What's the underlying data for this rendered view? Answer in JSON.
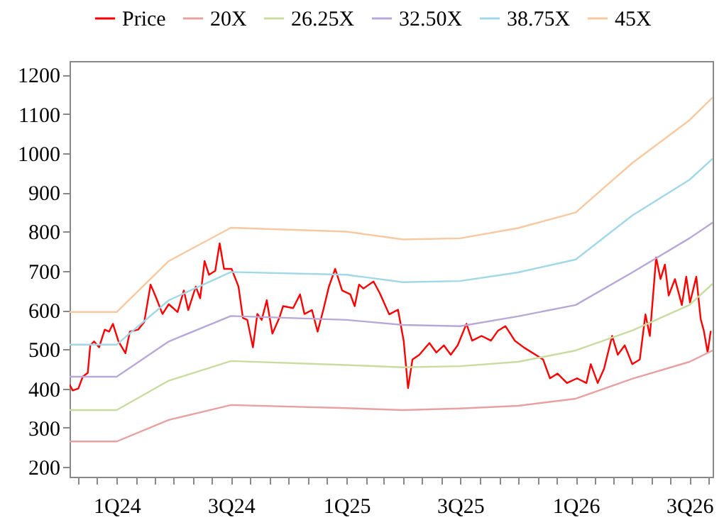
{
  "chart_data": {
    "type": "line",
    "legend": "top",
    "grid": false,
    "xlim": [
      "2023-10-18",
      "2026-08-07"
    ],
    "ylim": [
      175,
      1235
    ],
    "xticks": [
      {
        "value": "2023-11-01",
        "label": null
      },
      {
        "value": "2023-12-01",
        "label": null
      },
      {
        "value": "2024-01-01",
        "label": "1Q24"
      },
      {
        "value": "2024-02-01",
        "label": null
      },
      {
        "value": "2024-03-01",
        "label": null
      },
      {
        "value": "2024-04-01",
        "label": null
      },
      {
        "value": "2024-05-01",
        "label": null
      },
      {
        "value": "2024-06-01",
        "label": null
      },
      {
        "value": "2024-07-01",
        "label": "3Q24"
      },
      {
        "value": "2024-08-01",
        "label": null
      },
      {
        "value": "2024-09-01",
        "label": null
      },
      {
        "value": "2024-10-01",
        "label": null
      },
      {
        "value": "2024-11-01",
        "label": null
      },
      {
        "value": "2024-12-01",
        "label": null
      },
      {
        "value": "2025-01-01",
        "label": "1Q25"
      },
      {
        "value": "2025-02-01",
        "label": null
      },
      {
        "value": "2025-03-01",
        "label": null
      },
      {
        "value": "2025-04-01",
        "label": null
      },
      {
        "value": "2025-05-01",
        "label": null
      },
      {
        "value": "2025-06-01",
        "label": null
      },
      {
        "value": "2025-07-01",
        "label": "3Q25"
      },
      {
        "value": "2025-08-01",
        "label": null
      },
      {
        "value": "2025-09-01",
        "label": null
      },
      {
        "value": "2025-10-01",
        "label": null
      },
      {
        "value": "2025-11-01",
        "label": null
      },
      {
        "value": "2025-12-01",
        "label": null
      },
      {
        "value": "2026-01-01",
        "label": "1Q26"
      },
      {
        "value": "2026-02-01",
        "label": null
      },
      {
        "value": "2026-03-01",
        "label": null
      },
      {
        "value": "2026-04-01",
        "label": null
      },
      {
        "value": "2026-05-01",
        "label": null
      },
      {
        "value": "2026-06-01",
        "label": null
      },
      {
        "value": "2026-07-01",
        "label": "3Q26"
      },
      {
        "value": "2026-08-01",
        "label": null
      }
    ],
    "yticks": [
      200,
      300,
      400,
      500,
      600,
      700,
      800,
      900,
      1000,
      1100,
      1200
    ],
    "series": [
      {
        "name": "Price",
        "color": "#ff0000",
        "x": [
          "2023-10-18",
          "2023-10-23",
          "2023-11-01",
          "2023-11-08",
          "2023-11-16",
          "2023-11-20",
          "2023-11-26",
          "2023-12-04",
          "2023-12-13",
          "2023-12-20",
          "2023-12-26",
          "2024-01-04",
          "2024-01-15",
          "2024-01-22",
          "2024-02-04",
          "2024-02-14",
          "2024-02-24",
          "2024-03-03",
          "2024-03-14",
          "2024-03-24",
          "2024-04-07",
          "2024-04-17",
          "2024-04-24",
          "2024-05-06",
          "2024-05-13",
          "2024-05-20",
          "2024-05-27",
          "2024-06-06",
          "2024-06-13",
          "2024-06-20",
          "2024-07-02",
          "2024-07-13",
          "2024-07-20",
          "2024-07-27",
          "2024-08-05",
          "2024-08-12",
          "2024-08-19",
          "2024-08-27",
          "2024-09-05",
          "2024-09-16",
          "2024-09-22",
          "2024-10-08",
          "2024-10-19",
          "2024-10-26",
          "2024-11-07",
          "2024-11-16",
          "2024-11-25",
          "2024-12-04",
          "2024-12-14",
          "2024-12-25",
          "2025-01-07",
          "2025-01-14",
          "2025-01-21",
          "2025-01-28",
          "2025-02-13",
          "2025-02-23",
          "2025-03-10",
          "2025-03-24",
          "2025-04-02",
          "2025-04-09",
          "2025-04-16",
          "2025-04-27",
          "2025-05-13",
          "2025-05-24",
          "2025-06-05",
          "2025-06-16",
          "2025-06-27",
          "2025-07-11",
          "2025-07-20",
          "2025-08-04",
          "2025-08-19",
          "2025-08-30",
          "2025-09-11",
          "2025-09-26",
          "2025-10-11",
          "2025-10-29",
          "2025-11-10",
          "2025-11-21",
          "2025-12-03",
          "2025-12-18",
          "2026-01-03",
          "2026-01-18",
          "2026-01-25",
          "2026-02-05",
          "2026-02-15",
          "2026-02-28",
          "2026-03-09",
          "2026-03-20",
          "2026-04-01",
          "2026-04-13",
          "2026-04-22",
          "2026-04-29",
          "2026-05-09",
          "2026-05-16",
          "2026-05-23",
          "2026-05-29",
          "2026-06-08",
          "2026-06-19",
          "2026-06-26",
          "2026-07-02",
          "2026-07-12",
          "2026-07-19",
          "2026-07-24",
          "2026-07-30",
          "2026-08-04"
        ],
        "values": [
          410,
          395,
          400,
          430,
          440,
          510,
          520,
          505,
          550,
          545,
          565,
          520,
          490,
          545,
          550,
          570,
          665,
          635,
          590,
          615,
          595,
          650,
          600,
          660,
          630,
          725,
          690,
          700,
          770,
          705,
          705,
          660,
          580,
          575,
          505,
          590,
          575,
          625,
          540,
          580,
          610,
          605,
          640,
          590,
          600,
          545,
          600,
          660,
          705,
          650,
          640,
          610,
          665,
          655,
          673,
          643,
          589,
          601,
          522,
          401,
          474,
          486,
          516,
          492,
          510,
          486,
          510,
          565,
          522,
          534,
          522,
          547,
          559,
          522,
          504,
          486,
          474,
          426,
          438,
          414,
          426,
          414,
          462,
          414,
          450,
          534,
          486,
          510,
          462,
          474,
          589,
          534,
          734,
          679,
          716,
          637,
          679,
          613,
          685,
          619,
          685,
          577,
          547,
          492,
          547
        ]
      },
      {
        "name": "20X",
        "color": "#e8a0a0",
        "x": [
          "2023-10-18",
          "2024-01-01",
          "2024-03-24",
          "2024-07-01",
          "2025-01-01",
          "2025-04-01",
          "2025-07-01",
          "2025-10-01",
          "2026-01-01",
          "2026-04-01",
          "2026-07-01",
          "2026-08-07"
        ],
        "values": [
          265,
          265,
          320,
          358,
          350,
          345,
          349,
          356,
          374,
          425,
          468,
          497
        ]
      },
      {
        "name": "26.25X",
        "color": "#c8dca0",
        "x": [
          "2023-10-18",
          "2024-01-01",
          "2024-03-24",
          "2024-07-01",
          "2025-01-01",
          "2025-04-01",
          "2025-07-01",
          "2025-10-01",
          "2026-01-01",
          "2026-04-01",
          "2026-07-01",
          "2026-08-07"
        ],
        "values": [
          345,
          345,
          420,
          470,
          460,
          454,
          457,
          468,
          497,
          548,
          613,
          667
        ]
      },
      {
        "name": "32.50X",
        "color": "#b8a8d8",
        "x": [
          "2023-10-18",
          "2024-01-01",
          "2024-03-24",
          "2024-07-01",
          "2025-01-01",
          "2025-04-01",
          "2025-07-01",
          "2025-10-01",
          "2026-01-01",
          "2026-04-01",
          "2026-07-01",
          "2026-08-07"
        ],
        "values": [
          430,
          430,
          520,
          585,
          575,
          562,
          559,
          584,
          613,
          696,
          783,
          823
        ]
      },
      {
        "name": "38.75X",
        "color": "#a0d8e8",
        "x": [
          "2023-10-18",
          "2024-01-01",
          "2024-03-24",
          "2024-07-01",
          "2025-01-01",
          "2025-04-01",
          "2025-07-01",
          "2025-10-01",
          "2026-01-01",
          "2026-04-01",
          "2026-07-01",
          "2026-08-07"
        ],
        "values": [
          512,
          512,
          625,
          697,
          690,
          671,
          674,
          696,
          729,
          841,
          932,
          986
        ]
      },
      {
        "name": "45X",
        "color": "#f8c8a0",
        "x": [
          "2023-10-18",
          "2024-01-01",
          "2024-03-24",
          "2024-07-01",
          "2025-01-01",
          "2025-04-01",
          "2025-07-01",
          "2025-10-01",
          "2026-01-01",
          "2026-04-01",
          "2026-07-01",
          "2026-08-07"
        ],
        "values": [
          595,
          595,
          725,
          810,
          800,
          780,
          783,
          809,
          849,
          975,
          1084,
          1142
        ]
      }
    ]
  }
}
